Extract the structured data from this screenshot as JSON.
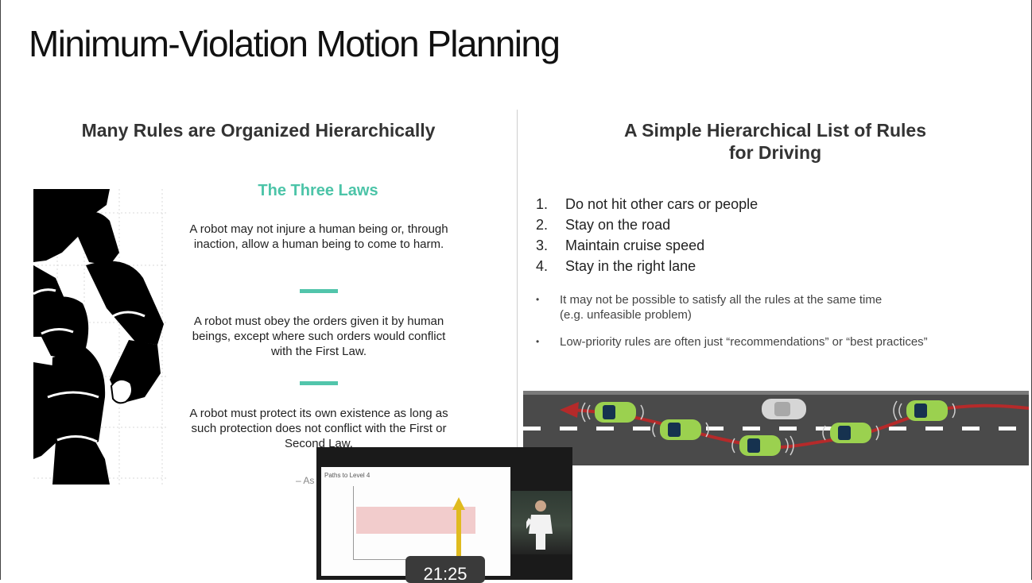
{
  "slide": {
    "title": "Minimum-Violation Motion Planning"
  },
  "left_panel": {
    "heading": "Many Rules are Organized Hierarchically",
    "laws_title": "The Three Laws",
    "law1": "A robot may not injure a human being or, through inaction, allow a human being to come to harm.",
    "law2": "A robot must obey the orders given it by human beings, except where such orders would conflict with the First Law.",
    "law3": "A robot must protect its own existence as long as such protection does not conflict with the First or Second Law.",
    "attribution": "– As"
  },
  "right_panel": {
    "heading_line1": "A Simple Hierarchical List of Rules",
    "heading_line2": "for Driving",
    "rules": [
      {
        "num": "1.",
        "text": "Do not hit other cars or people"
      },
      {
        "num": "2.",
        "text": "Stay on the road"
      },
      {
        "num": "3.",
        "text": "Maintain cruise speed"
      },
      {
        "num": "4.",
        "text": "Stay in the right lane"
      }
    ],
    "bullets": [
      {
        "line1": "It may not be possible to satisfy all the rules at the same time",
        "line2": "(e.g. unfeasible problem)"
      },
      {
        "line1": "Low-priority rules are often just “recommendations” or “best practices”",
        "line2": ""
      }
    ]
  },
  "video": {
    "pip_slide_title": "Paths to Level 4",
    "timecode": "21:25"
  },
  "colors": {
    "accent": "#4cc4a8",
    "road": "#4a4a4a",
    "car": "#9bd14f",
    "trajectory": "#b52a2a"
  }
}
